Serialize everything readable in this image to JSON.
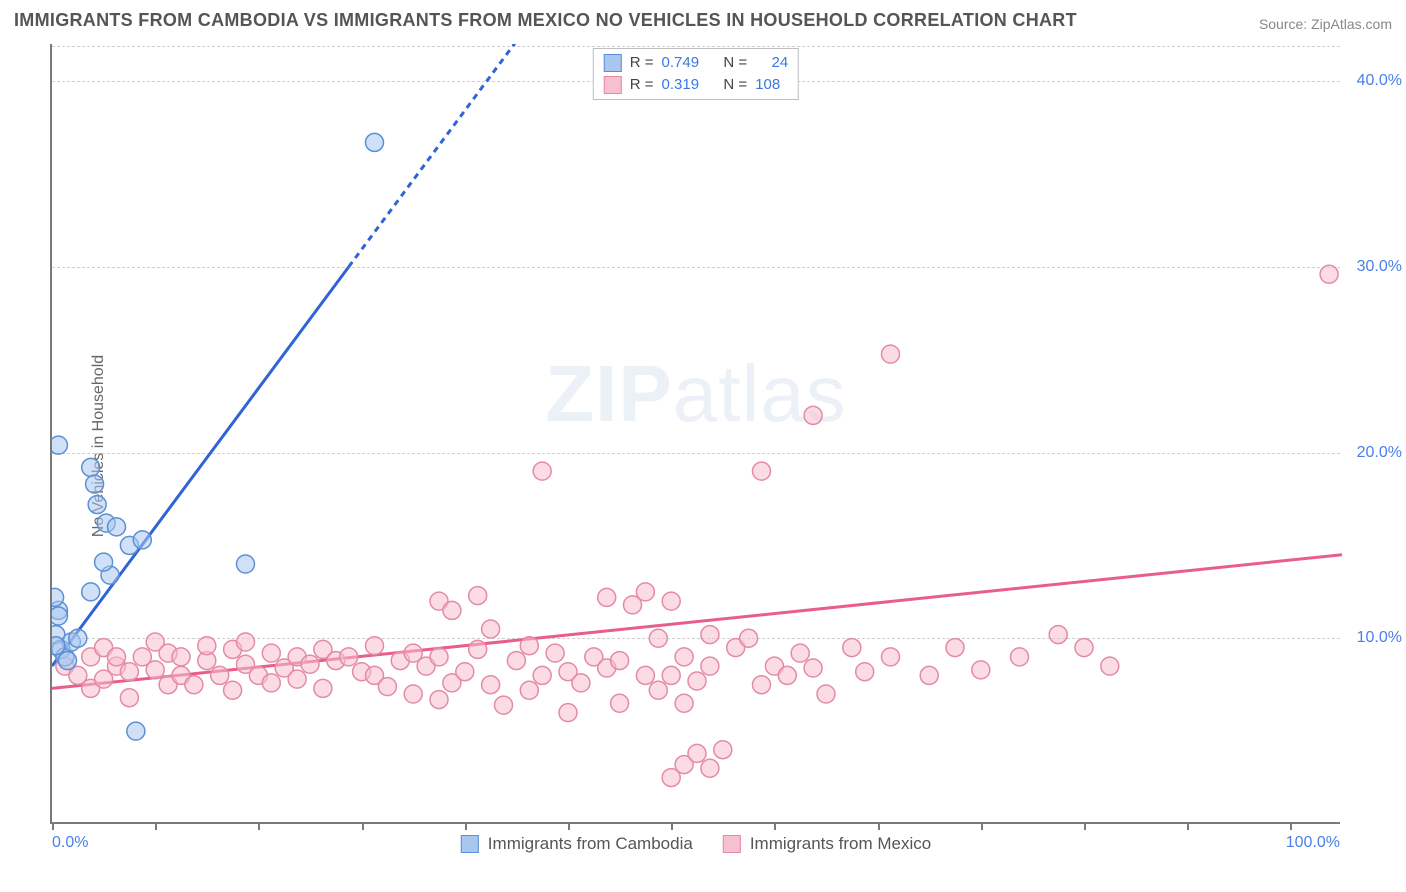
{
  "header": {
    "title": "IMMIGRANTS FROM CAMBODIA VS IMMIGRANTS FROM MEXICO NO VEHICLES IN HOUSEHOLD CORRELATION CHART",
    "source_label": "Source: ZipAtlas.com"
  },
  "ylabel": "No Vehicles in Household",
  "watermark": {
    "left": "ZIP",
    "right": "atlas"
  },
  "chart": {
    "type": "scatter",
    "xlim": [
      0,
      100
    ],
    "ylim": [
      0,
      42
    ],
    "y_ticks": [
      10,
      20,
      30,
      40
    ],
    "y_tick_labels": [
      "10.0%",
      "20.0%",
      "30.0%",
      "40.0%"
    ],
    "x_tick_positions": [
      0,
      8,
      16,
      24,
      32,
      40,
      48,
      56,
      64,
      72,
      80,
      88,
      96
    ],
    "x_label_0": "0.0%",
    "x_label_100": "100.0%",
    "background_color": "#ffffff",
    "grid_color": "#cfcfcf",
    "axis_color": "#7a7a7a",
    "tick_label_color": "#4a80e8",
    "marker_radius": 9,
    "marker_stroke_width": 1.5,
    "trend_line_width": 3,
    "series": {
      "cambodia": {
        "label": "Immigrants from Cambodia",
        "fill": "#a9c6ef",
        "stroke": "#5b8fd6",
        "fill_opacity": 0.55,
        "trend_color": "#2f63d6",
        "trend": {
          "x1": 0,
          "y1": 8.5,
          "x2": 23,
          "y2": 30,
          "dash_extend_to_x": 37
        },
        "R": "0.749",
        "N": "24",
        "points": [
          [
            0.5,
            11.5
          ],
          [
            0.5,
            11.2
          ],
          [
            0.3,
            10.2
          ],
          [
            0.7,
            9.4
          ],
          [
            1.0,
            9.0
          ],
          [
            1.5,
            9.8
          ],
          [
            1.2,
            8.8
          ],
          [
            0.2,
            12.2
          ],
          [
            3.0,
            19.2
          ],
          [
            3.3,
            18.3
          ],
          [
            3.5,
            17.2
          ],
          [
            4.2,
            16.2
          ],
          [
            5.0,
            16.0
          ],
          [
            6.0,
            15.0
          ],
          [
            7.0,
            15.3
          ],
          [
            4.5,
            13.4
          ],
          [
            4.0,
            14.1
          ],
          [
            2.0,
            10.0
          ],
          [
            3.0,
            12.5
          ],
          [
            15.0,
            14.0
          ],
          [
            6.5,
            5.0
          ],
          [
            0.5,
            20.4
          ],
          [
            25.0,
            36.7
          ],
          [
            0.3,
            9.6
          ]
        ]
      },
      "mexico": {
        "label": "Immigrants from Mexico",
        "fill": "#f7c0cf",
        "stroke": "#e48ba4",
        "fill_opacity": 0.55,
        "trend_color": "#e85d8a",
        "trend": {
          "x1": 0,
          "y1": 7.3,
          "x2": 100,
          "y2": 14.5
        },
        "R": "0.319",
        "N": "108",
        "points": [
          [
            1,
            8.5
          ],
          [
            2,
            8.0
          ],
          [
            3,
            7.3
          ],
          [
            3,
            9.0
          ],
          [
            4,
            9.5
          ],
          [
            4,
            7.8
          ],
          [
            5,
            8.5
          ],
          [
            5,
            9.0
          ],
          [
            6,
            8.2
          ],
          [
            6,
            6.8
          ],
          [
            7,
            9.0
          ],
          [
            8,
            8.3
          ],
          [
            8,
            9.8
          ],
          [
            9,
            9.2
          ],
          [
            9,
            7.5
          ],
          [
            10,
            8.0
          ],
          [
            10,
            9.0
          ],
          [
            11,
            7.5
          ],
          [
            12,
            8.8
          ],
          [
            12,
            9.6
          ],
          [
            13,
            8.0
          ],
          [
            14,
            9.4
          ],
          [
            14,
            7.2
          ],
          [
            15,
            8.6
          ],
          [
            15,
            9.8
          ],
          [
            16,
            8.0
          ],
          [
            17,
            9.2
          ],
          [
            17,
            7.6
          ],
          [
            18,
            8.4
          ],
          [
            19,
            9.0
          ],
          [
            19,
            7.8
          ],
          [
            20,
            8.6
          ],
          [
            21,
            9.4
          ],
          [
            21,
            7.3
          ],
          [
            22,
            8.8
          ],
          [
            23,
            9.0
          ],
          [
            24,
            8.2
          ],
          [
            25,
            8.0
          ],
          [
            25,
            9.6
          ],
          [
            26,
            7.4
          ],
          [
            27,
            8.8
          ],
          [
            28,
            9.2
          ],
          [
            28,
            7.0
          ],
          [
            29,
            8.5
          ],
          [
            30,
            9.0
          ],
          [
            30,
            12.0
          ],
          [
            31,
            11.5
          ],
          [
            30,
            6.7
          ],
          [
            31,
            7.6
          ],
          [
            32,
            8.2
          ],
          [
            33,
            9.4
          ],
          [
            33,
            12.3
          ],
          [
            34,
            7.5
          ],
          [
            34,
            10.5
          ],
          [
            35,
            6.4
          ],
          [
            36,
            8.8
          ],
          [
            37,
            9.6
          ],
          [
            37,
            7.2
          ],
          [
            38,
            8.0
          ],
          [
            38,
            19.0
          ],
          [
            39,
            9.2
          ],
          [
            40,
            8.2
          ],
          [
            40,
            6.0
          ],
          [
            41,
            7.6
          ],
          [
            42,
            9.0
          ],
          [
            43,
            8.4
          ],
          [
            43,
            12.2
          ],
          [
            44,
            8.8
          ],
          [
            44,
            6.5
          ],
          [
            45,
            11.8
          ],
          [
            46,
            8.0
          ],
          [
            46,
            12.5
          ],
          [
            47,
            7.2
          ],
          [
            47,
            10.0
          ],
          [
            48,
            2.5
          ],
          [
            48,
            8.0
          ],
          [
            48,
            12.0
          ],
          [
            49,
            9.0
          ],
          [
            49,
            3.2
          ],
          [
            49,
            6.5
          ],
          [
            50,
            7.7
          ],
          [
            50,
            3.8
          ],
          [
            51,
            3.0
          ],
          [
            51,
            8.5
          ],
          [
            51,
            10.2
          ],
          [
            52,
            4.0
          ],
          [
            53,
            9.5
          ],
          [
            54,
            10.0
          ],
          [
            55,
            7.5
          ],
          [
            55,
            19.0
          ],
          [
            56,
            8.5
          ],
          [
            57,
            8.0
          ],
          [
            58,
            9.2
          ],
          [
            59,
            8.4
          ],
          [
            59,
            22.0
          ],
          [
            60,
            7.0
          ],
          [
            62,
            9.5
          ],
          [
            63,
            8.2
          ],
          [
            65,
            9.0
          ],
          [
            65,
            25.3
          ],
          [
            68,
            8.0
          ],
          [
            70,
            9.5
          ],
          [
            72,
            8.3
          ],
          [
            75,
            9.0
          ],
          [
            78,
            10.2
          ],
          [
            80,
            9.5
          ],
          [
            82,
            8.5
          ],
          [
            99,
            29.6
          ]
        ]
      }
    }
  },
  "legend_top": {
    "r_label": "R =",
    "n_label": "N ="
  }
}
